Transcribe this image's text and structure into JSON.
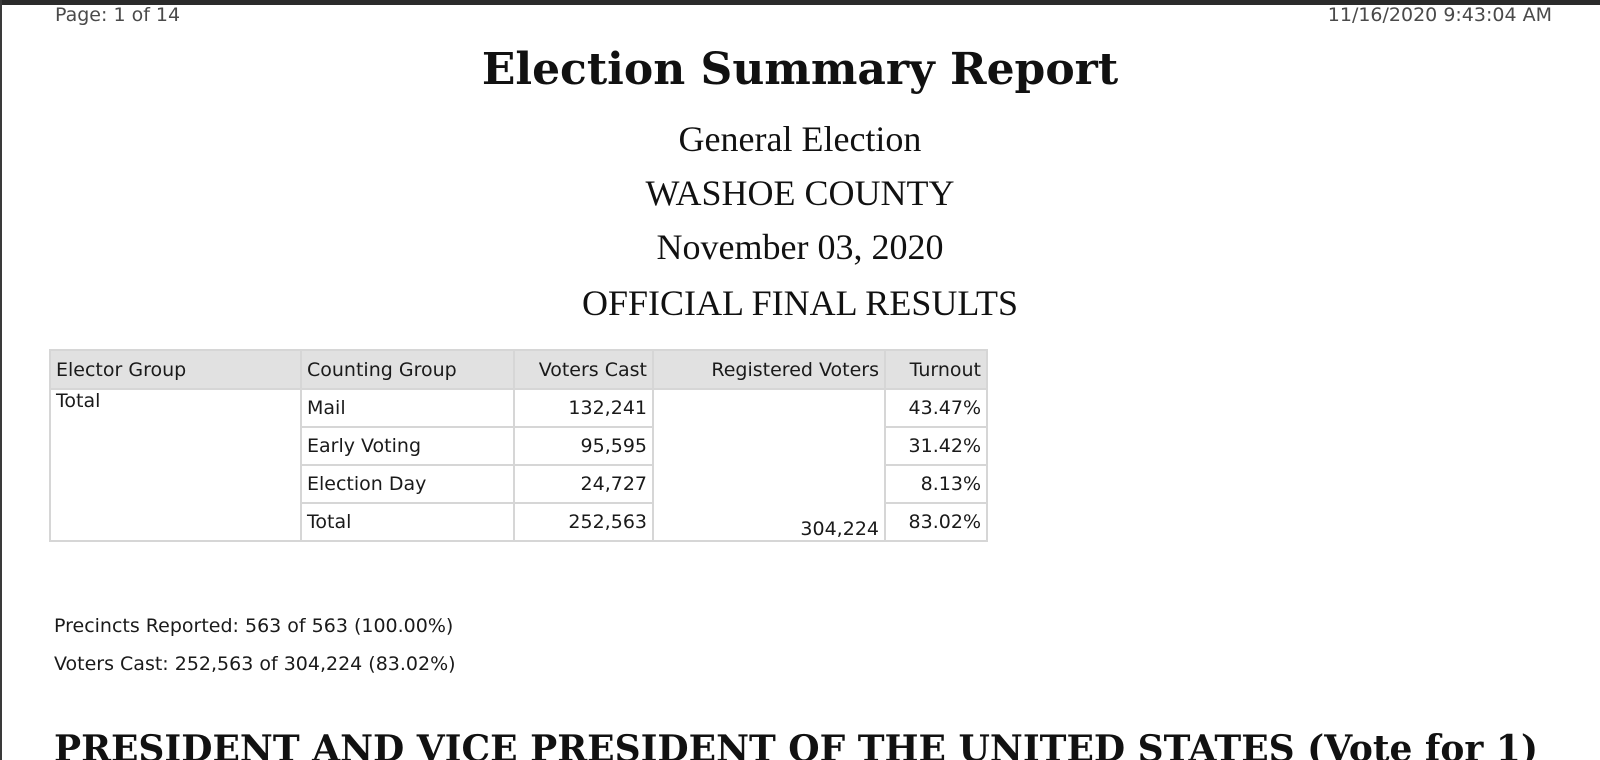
{
  "header": {
    "page_label": "Page: 1 of 14",
    "timestamp": "11/16/2020 9:43:04 AM"
  },
  "report": {
    "title": "Election Summary Report",
    "election": "General Election",
    "county": "WASHOE COUNTY",
    "date": "November 03, 2020",
    "status": "OFFICIAL FINAL RESULTS"
  },
  "table": {
    "columns": [
      "Elector Group",
      "Counting Group",
      "Voters Cast",
      "Registered Voters",
      "Turnout"
    ],
    "elector_group": "Total",
    "registered_voters": "304,224",
    "rows": [
      {
        "counting_group": "Mail",
        "voters_cast": "132,241",
        "turnout": "43.47%"
      },
      {
        "counting_group": "Early Voting",
        "voters_cast": "95,595",
        "turnout": "31.42%"
      },
      {
        "counting_group": "Election Day",
        "voters_cast": "24,727",
        "turnout": "8.13%"
      },
      {
        "counting_group": "Total",
        "voters_cast": "252,563",
        "turnout": "83.02%"
      }
    ]
  },
  "summary": {
    "precincts_reported": "Precincts Reported: 563 of 563 (100.00%)",
    "voters_cast": "Voters Cast: 252,563 of 304,224 (83.02%)"
  },
  "race": {
    "title": "PRESIDENT AND VICE PRESIDENT OF THE UNITED STATES (Vote for 1)"
  }
}
